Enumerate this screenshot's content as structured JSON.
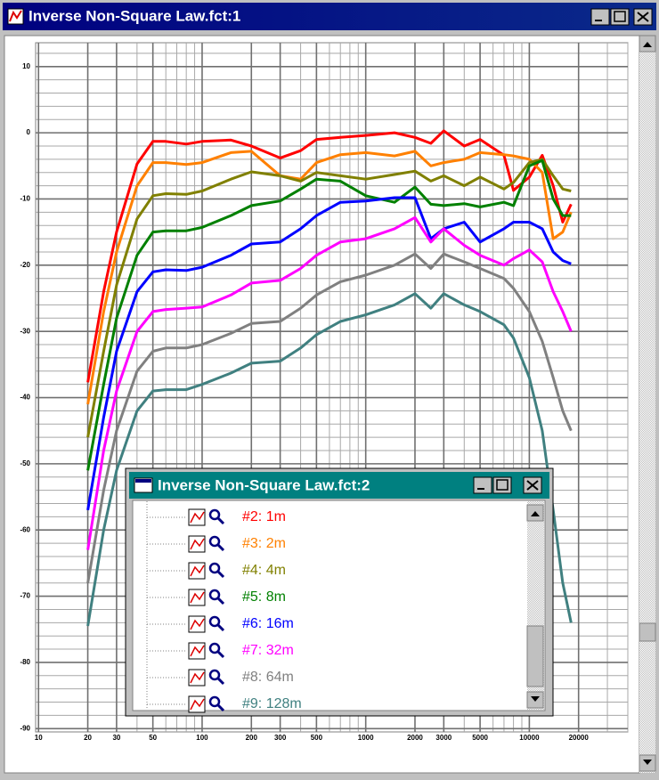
{
  "window_title": "Inverse Non-Square Law.fct:1",
  "legend_window_title": "Inverse Non-Square Law.fct:2",
  "chart_data": {
    "type": "line",
    "log_x": true,
    "grid": true,
    "minor_grid": true,
    "xlim": [
      9.6,
      40000
    ],
    "ylim": [
      -90.5,
      13.6
    ],
    "xticks": [
      10,
      20,
      30,
      50,
      100,
      200,
      300,
      500,
      1000,
      2000,
      3000,
      5000,
      10000,
      20000
    ],
    "yticks": [
      10,
      0,
      -10,
      -20,
      -30,
      -40,
      -50,
      -60,
      -70,
      -80,
      -90
    ],
    "x": [
      20,
      25,
      30,
      40,
      50,
      60,
      80,
      100,
      150,
      200,
      300,
      400,
      500,
      700,
      1000,
      1500,
      2000,
      2500,
      3000,
      4000,
      5000,
      7000,
      8000,
      10000,
      12000,
      14000,
      16000,
      18000
    ],
    "series": [
      {
        "name": "#2: 1m",
        "color": "#ff0000",
        "values": [
          -37.7,
          -24,
          -15,
          -4.7,
          -1.3,
          -1.3,
          -1.7,
          -1.3,
          -1.1,
          -2,
          -3.8,
          -2.7,
          -1,
          -0.7,
          -0.4,
          0,
          -0.7,
          -1.6,
          0.3,
          -2,
          -1,
          -3.4,
          -8.7,
          -6.7,
          -3.4,
          -8,
          -13.5,
          -10.8
        ]
      },
      {
        "name": "#3: 2m",
        "color": "#ff8000",
        "values": [
          -41,
          -27,
          -18,
          -8,
          -4.5,
          -4.5,
          -4.8,
          -4.5,
          -3,
          -2.8,
          -6.5,
          -7,
          -4.5,
          -3.3,
          -3,
          -3.5,
          -2.8,
          -5,
          -4.5,
          -4,
          -3,
          -3.3,
          -3.5,
          -4,
          -6,
          -16,
          -15,
          -12
        ]
      },
      {
        "name": "#4: 4m",
        "color": "#808000",
        "values": [
          -46,
          -33,
          -23,
          -13,
          -9.5,
          -9.2,
          -9.3,
          -8.8,
          -7,
          -5.9,
          -6.5,
          -7.3,
          -6,
          -6.5,
          -7,
          -6.3,
          -5.8,
          -7.3,
          -6.5,
          -8,
          -6.7,
          -8.5,
          -7.5,
          -4.5,
          -4,
          -6.5,
          -8.5,
          -8.8
        ]
      },
      {
        "name": "#5: 8m",
        "color": "#008000",
        "values": [
          -51,
          -38,
          -28,
          -18.5,
          -15,
          -14.8,
          -14.8,
          -14.3,
          -12.5,
          -11,
          -10.3,
          -8.5,
          -7,
          -7.3,
          -9.5,
          -10.5,
          -8.2,
          -10.8,
          -11,
          -10.7,
          -11.2,
          -10.5,
          -11,
          -5,
          -4.2,
          -10,
          -12.5,
          -12.5
        ]
      },
      {
        "name": "#6: 16m",
        "color": "#0000ff",
        "values": [
          -57,
          -43,
          -33,
          -24,
          -21,
          -20.7,
          -20.8,
          -20.3,
          -18.5,
          -16.8,
          -16.5,
          -14.5,
          -12.5,
          -10.5,
          -10.3,
          -9.8,
          -9.8,
          -16,
          -14.5,
          -13.5,
          -16.5,
          -14.5,
          -13.5,
          -13.5,
          -14.5,
          -18,
          -19.3,
          -19.8
        ]
      },
      {
        "name": "#7: 32m",
        "color": "#ff00ff",
        "values": [
          -63,
          -48,
          -39,
          -30,
          -27,
          -26.7,
          -26.5,
          -26.3,
          -24.5,
          -22.7,
          -22.3,
          -20.5,
          -18.5,
          -16.5,
          -16,
          -14.5,
          -12.8,
          -16.5,
          -14.5,
          -17,
          -18.5,
          -20,
          -19,
          -17.7,
          -19.5,
          -24,
          -27,
          -30
        ]
      },
      {
        "name": "#8: 64m",
        "color": "#808080",
        "values": [
          -68,
          -54,
          -45,
          -36,
          -33,
          -32.5,
          -32.5,
          -32,
          -30.3,
          -28.8,
          -28.5,
          -26.5,
          -24.5,
          -22.5,
          -21.5,
          -20,
          -18.3,
          -20.5,
          -18.3,
          -19.5,
          -20.5,
          -22,
          -23.5,
          -27,
          -31.5,
          -37,
          -42,
          -45
        ]
      },
      {
        "name": "#9: 128m",
        "color": "#408080",
        "values": [
          -74.5,
          -60,
          -51,
          -42,
          -39,
          -38.8,
          -38.8,
          -38,
          -36.3,
          -34.8,
          -34.5,
          -32.5,
          -30.5,
          -28.5,
          -27.5,
          -26,
          -24.3,
          -26.5,
          -24.3,
          -26,
          -27,
          -29,
          -31,
          -37,
          -45,
          -57,
          -68,
          -74
        ]
      }
    ]
  }
}
